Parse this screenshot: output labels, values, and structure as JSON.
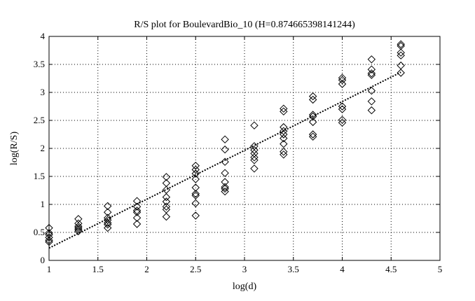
{
  "chart_data": {
    "type": "scatter",
    "title": "R/S plot for BoulevardBio_10 (H=0.874665398141244)",
    "xlabel": "log(d)",
    "ylabel": "log(R/S)",
    "xlim": [
      1,
      5
    ],
    "ylim": [
      0,
      4
    ],
    "xticks": [
      "1",
      "1.5",
      "2",
      "2.5",
      "3",
      "3.5",
      "4",
      "4.5",
      "5"
    ],
    "yticks": [
      "0",
      "0.5",
      "1",
      "1.5",
      "2",
      "2.5",
      "3",
      "3.5",
      "4"
    ],
    "grid": true,
    "marker": "diamond",
    "points": [
      {
        "x": 1.0,
        "ys": [
          0.58,
          0.49,
          0.46,
          0.41,
          0.36,
          0.33
        ]
      },
      {
        "x": 1.3,
        "ys": [
          0.74,
          0.66,
          0.61,
          0.58,
          0.55,
          0.52
        ]
      },
      {
        "x": 1.6,
        "ys": [
          0.97,
          0.86,
          0.76,
          0.72,
          0.67,
          0.64,
          0.58
        ]
      },
      {
        "x": 1.9,
        "ys": [
          1.06,
          0.96,
          0.89,
          0.86,
          0.76,
          0.65
        ]
      },
      {
        "x": 2.2,
        "ys": [
          1.49,
          1.38,
          1.26,
          1.13,
          1.05,
          0.96,
          0.91,
          0.78
        ]
      },
      {
        "x": 2.5,
        "ys": [
          1.69,
          1.62,
          1.55,
          1.45,
          1.3,
          1.19,
          1.16,
          1.02,
          0.8
        ]
      },
      {
        "x": 2.8,
        "ys": [
          2.16,
          1.98,
          1.76,
          1.56,
          1.4,
          1.31,
          1.28,
          1.23
        ]
      },
      {
        "x": 3.1,
        "ys": [
          2.41,
          2.04,
          1.97,
          1.91,
          1.84,
          1.79,
          1.64
        ]
      },
      {
        "x": 3.4,
        "ys": [
          2.71,
          2.66,
          2.38,
          2.31,
          2.25,
          2.18,
          2.08,
          1.94,
          1.89
        ]
      },
      {
        "x": 3.7,
        "ys": [
          2.93,
          2.87,
          2.6,
          2.57,
          2.47,
          2.25,
          2.21
        ]
      },
      {
        "x": 4.0,
        "ys": [
          3.26,
          3.22,
          3.15,
          2.75,
          2.7,
          2.51,
          2.46
        ]
      },
      {
        "x": 4.3,
        "ys": [
          3.59,
          3.41,
          3.34,
          3.31,
          3.03,
          2.84,
          2.68
        ]
      },
      {
        "x": 4.6,
        "ys": [
          3.86,
          3.83,
          3.71,
          3.66,
          3.48,
          3.35
        ]
      }
    ],
    "fit_line": {
      "x": [
        1.0,
        4.6
      ],
      "y": [
        0.22,
        3.36
      ],
      "style": "dotted"
    }
  }
}
